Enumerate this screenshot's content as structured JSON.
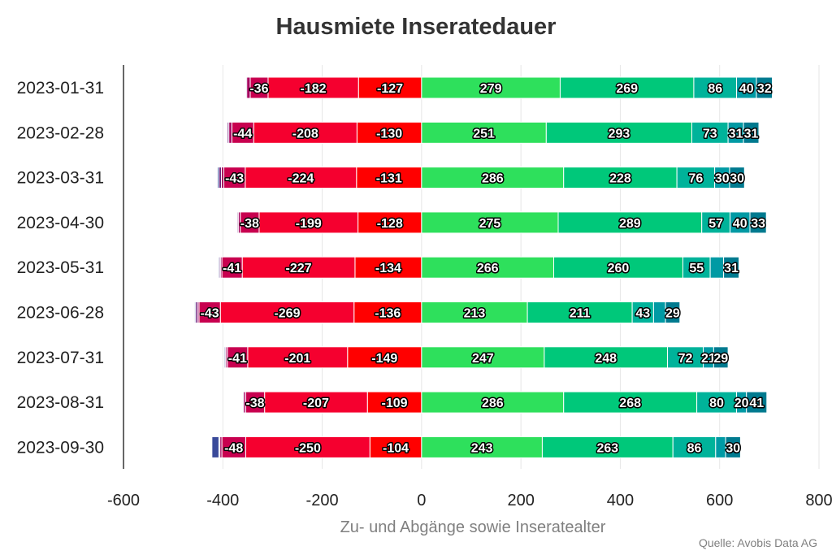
{
  "chart_data": {
    "type": "bar",
    "orientation": "horizontal",
    "stacked": true,
    "diverging": true,
    "title": "Hausmiete Inseratedauer",
    "xlabel": "Zu- und Abgänge sowie Inseratealter",
    "ylabel": "",
    "source": "Quelle: Avobis Data AG",
    "xlim": [
      -600,
      800
    ],
    "xticks": [
      -600,
      -400,
      -200,
      0,
      200,
      400,
      600,
      800
    ],
    "categories": [
      "2023-01-31",
      "2023-02-28",
      "2023-03-31",
      "2023-04-30",
      "2023-05-31",
      "2023-06-28",
      "2023-07-31",
      "2023-08-31",
      "2023-09-30"
    ],
    "grid": "vertical",
    "legend": "none",
    "negative_series": [
      {
        "color": "#ff0000",
        "values": [
          -127,
          -130,
          -131,
          -128,
          -134,
          -136,
          -149,
          -109,
          -104
        ],
        "labels": [
          "-127",
          "-130",
          "-131",
          "-128",
          "-134",
          "-136",
          "-149",
          "-109",
          "-104"
        ]
      },
      {
        "color": "#f5002f",
        "values": [
          -182,
          -208,
          -224,
          -199,
          -227,
          -269,
          -201,
          -207,
          -250
        ],
        "labels": [
          "-182",
          "-208",
          "-224",
          "-199",
          "-227",
          "-269",
          "-201",
          "-207",
          "-250"
        ]
      },
      {
        "color": "#c8004f",
        "values": [
          -36,
          -44,
          -43,
          -38,
          -41,
          -43,
          -41,
          -38,
          -48
        ],
        "labels": [
          "-36",
          "-44",
          "-43",
          "-38",
          "-41",
          "-43",
          "-41",
          "-38",
          "-48"
        ]
      },
      {
        "color": "#a6005e",
        "values": [
          -7,
          -6,
          -5,
          -4,
          -3,
          -3,
          -3,
          -4,
          -4
        ],
        "labels": [
          "",
          "",
          "",
          "",
          "",
          "",
          "",
          "",
          ""
        ]
      },
      {
        "color": "#6a1b7a",
        "values": [
          -2,
          -3,
          -5,
          -2,
          -2,
          -4,
          -2,
          -2,
          -2
        ],
        "labels": [
          "",
          "",
          "",
          "",
          "",
          "",
          "",
          "",
          ""
        ]
      },
      {
        "color": "#3a4a9a",
        "values": [
          -1,
          -1,
          -3,
          -1,
          -2,
          -2,
          -2,
          -1,
          -14
        ],
        "labels": [
          "",
          "",
          "",
          "",
          "",
          "",
          "",
          "",
          ""
        ]
      }
    ],
    "positive_series": [
      {
        "color": "#2ee05c",
        "values": [
          279,
          251,
          286,
          275,
          266,
          213,
          247,
          286,
          243
        ],
        "labels": [
          "279",
          "251",
          "286",
          "275",
          "266",
          "213",
          "247",
          "286",
          "243"
        ]
      },
      {
        "color": "#00c87a",
        "values": [
          269,
          293,
          228,
          289,
          260,
          211,
          248,
          268,
          263
        ],
        "labels": [
          "269",
          "293",
          "228",
          "289",
          "260",
          "211",
          "248",
          "268",
          "263"
        ]
      },
      {
        "color": "#00b39a",
        "values": [
          86,
          73,
          76,
          57,
          55,
          43,
          72,
          80,
          86
        ],
        "labels": [
          "86",
          "73",
          "76",
          "57",
          "55",
          "43",
          "72",
          "80",
          "86"
        ]
      },
      {
        "color": "#009aa4",
        "values": [
          40,
          31,
          30,
          40,
          27,
          24,
          21,
          20,
          20
        ],
        "labels": [
          "40",
          "31",
          "30",
          "40",
          "",
          "",
          "21",
          "20",
          ""
        ]
      },
      {
        "color": "#007a8f",
        "values": [
          32,
          31,
          30,
          33,
          31,
          29,
          29,
          41,
          30
        ],
        "labels": [
          "32",
          "31",
          "30",
          "33",
          "31",
          "29",
          "29",
          "41",
          "30"
        ]
      }
    ]
  }
}
